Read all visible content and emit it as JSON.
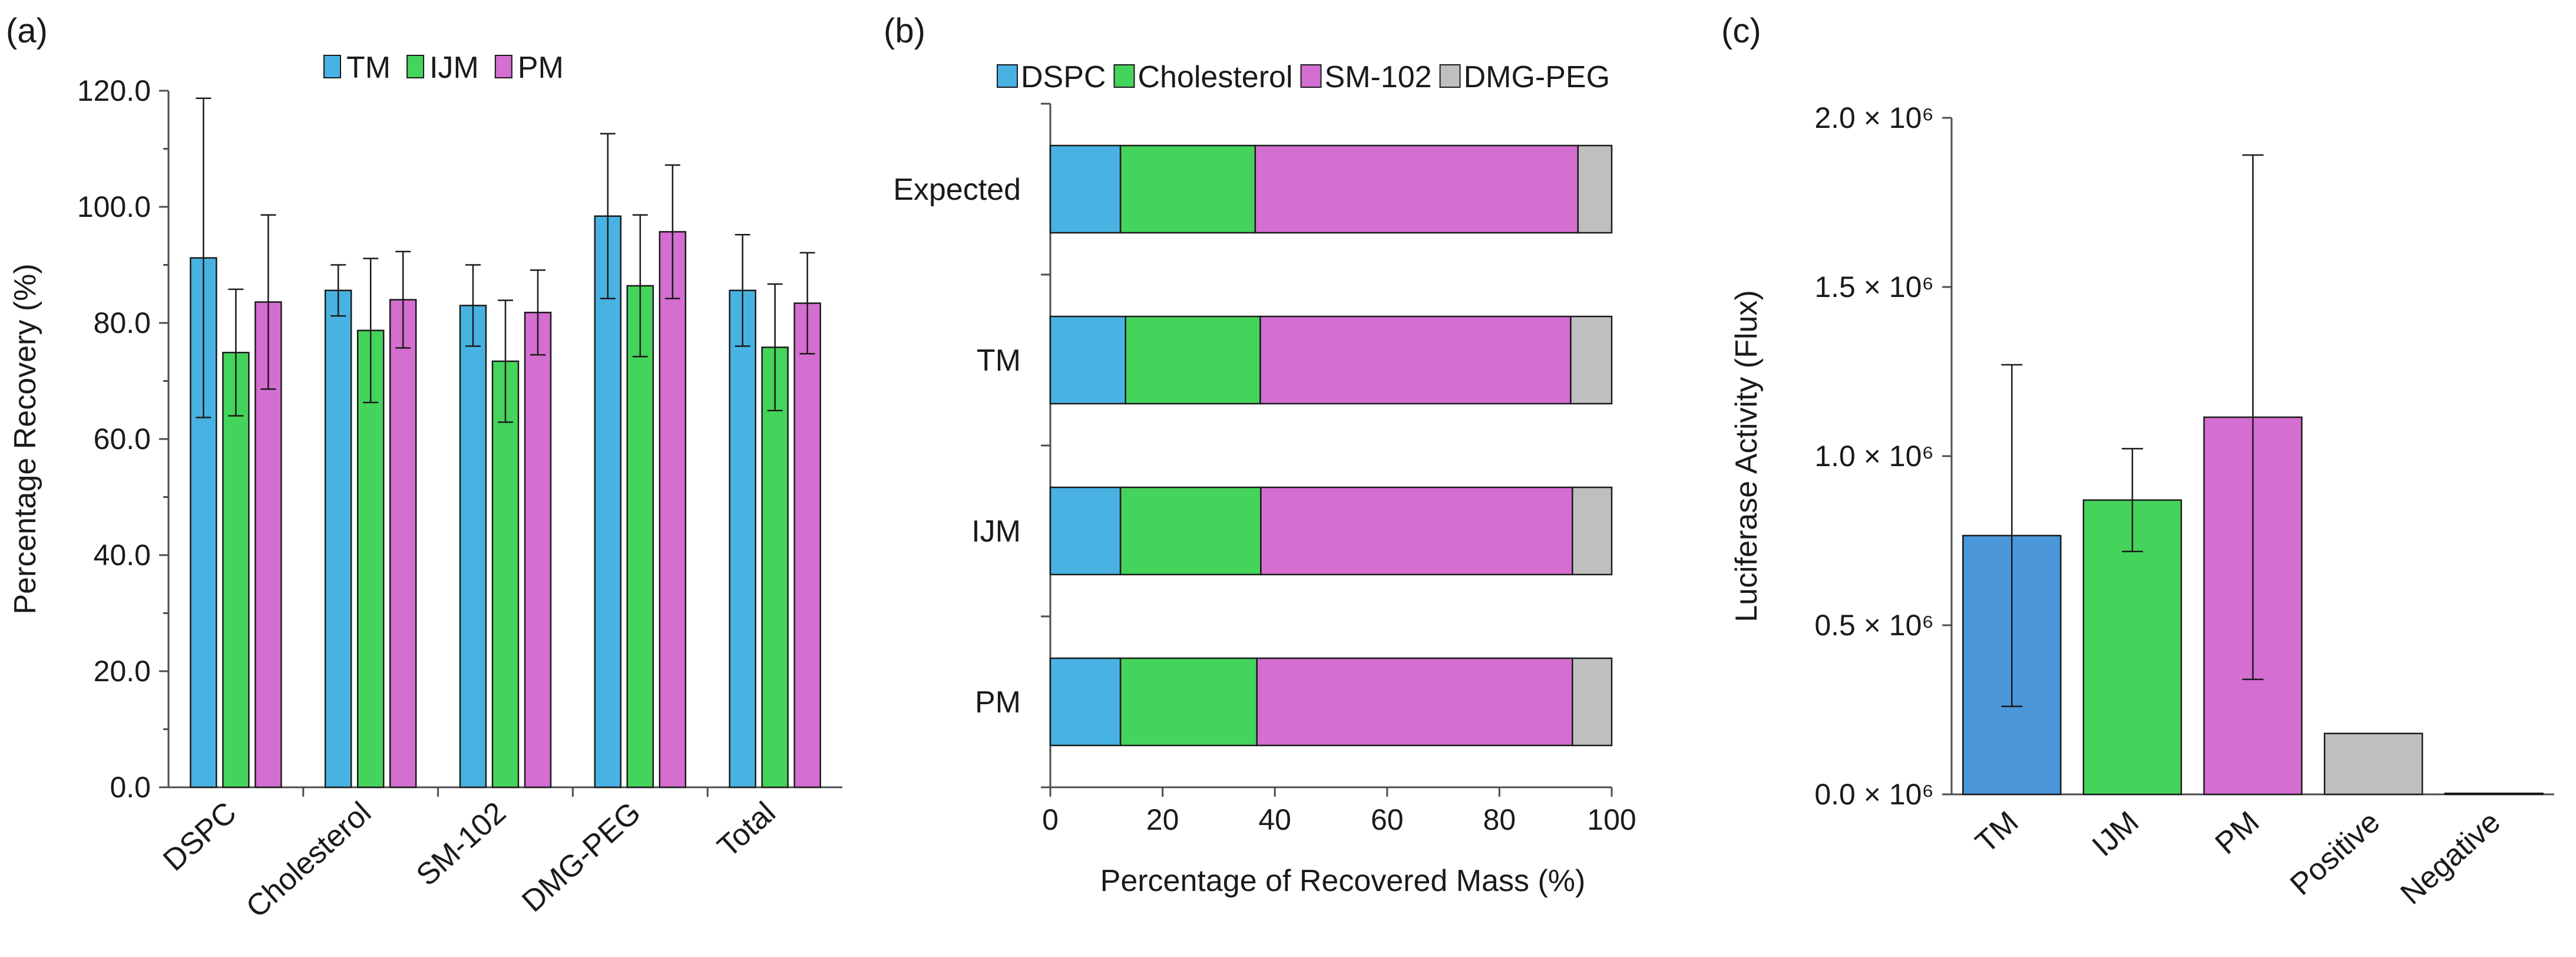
{
  "chart_data": [
    {
      "panel": "(a)",
      "type": "bar",
      "title": "",
      "xlabel": "",
      "ylabel": "Percentage Recovery (%)",
      "ylim": [
        0,
        120
      ],
      "yticks": [
        "0.0",
        "20.0",
        "40.0",
        "60.0",
        "80.0",
        "100.0",
        "120.0"
      ],
      "categories": [
        "DSPC",
        "Cholesterol",
        "SM-102",
        "DMG-PEG",
        "Total"
      ],
      "legend_position": "top-center",
      "series": [
        {
          "name": "TM",
          "color": "#48b3e2",
          "values": [
            91.2,
            85.6,
            83.0,
            98.4,
            85.6
          ],
          "errors": [
            27.5,
            4.4,
            7.0,
            14.2,
            9.6
          ]
        },
        {
          "name": "IJM",
          "color": "#45d45b",
          "values": [
            74.9,
            78.7,
            73.4,
            86.4,
            75.8
          ],
          "errors": [
            10.9,
            12.4,
            10.5,
            12.2,
            10.9
          ]
        },
        {
          "name": "PM",
          "color": "#d46ed0",
          "values": [
            83.6,
            84.0,
            81.8,
            95.7,
            83.4
          ],
          "errors": [
            15.0,
            8.3,
            7.3,
            11.5,
            8.7
          ]
        }
      ]
    },
    {
      "panel": "(b)",
      "type": "bar",
      "orientation": "horizontal-stacked",
      "title": "",
      "xlabel": "Percentage of Recovered Mass (%)",
      "ylabel": "",
      "xlim": [
        0,
        100
      ],
      "xticks": [
        "0",
        "20",
        "40",
        "60",
        "80",
        "100"
      ],
      "categories": [
        "Expected",
        "TM",
        "IJM",
        "PM"
      ],
      "legend_position": "top",
      "series": [
        {
          "name": "DSPC",
          "color": "#48b3e2",
          "values": [
            12.5,
            13.4,
            12.5,
            12.5
          ]
        },
        {
          "name": "Cholesterol",
          "color": "#45d45b",
          "values": [
            24.0,
            24.0,
            25.0,
            24.3
          ]
        },
        {
          "name": "SM-102",
          "color": "#d46ed0",
          "values": [
            57.5,
            55.3,
            55.5,
            56.2
          ]
        },
        {
          "name": "DMG-PEG",
          "color": "#bfbfbf",
          "values": [
            6.0,
            7.3,
            7.0,
            7.0
          ]
        }
      ]
    },
    {
      "panel": "(c)",
      "type": "bar",
      "title": "",
      "xlabel": "",
      "ylabel": "Luciferase Activity (Flux)",
      "ylim": [
        0,
        2000000
      ],
      "yticks": [
        "0.0 × 10⁶",
        "0.5 × 10⁶",
        "1.0 × 10⁶",
        "1.5 × 10⁶",
        "2.0 × 10⁶"
      ],
      "categories": [
        "TM",
        "IJM",
        "PM",
        "Positive",
        "Negative"
      ],
      "colors": [
        "#4b97da",
        "#45d45b",
        "#d46ed0",
        "#bfbfbf",
        "#bfbfbf"
      ],
      "values": [
        765000,
        870000,
        1115000,
        180000,
        3000
      ],
      "errors": [
        505000,
        152000,
        775000,
        null,
        null
      ]
    }
  ]
}
